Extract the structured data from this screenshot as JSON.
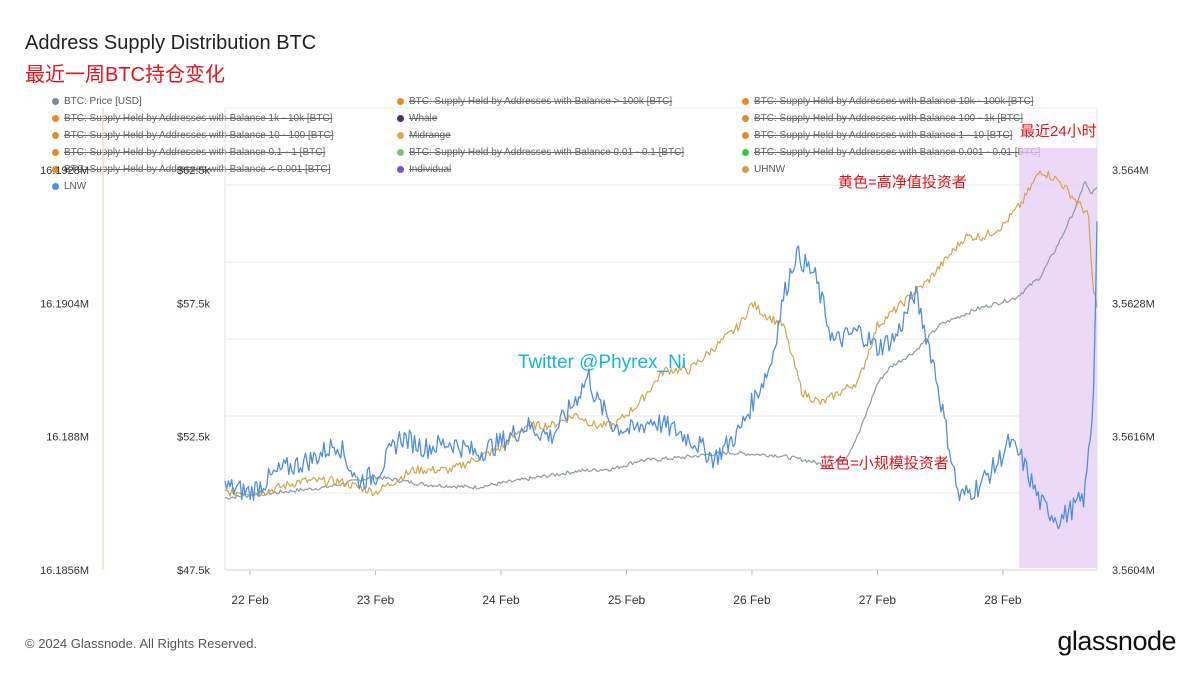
{
  "header": {
    "title": "Address Supply Distribution BTC",
    "subtitle": "最近一周BTC持仓变化"
  },
  "legend": [
    {
      "label": "BTC: Price [USD]",
      "color": "#7a8a93",
      "struck": false
    },
    {
      "label": "BTC: Supply Held by Addresses with Balance > 100k [BTC]",
      "color": "#e8892c",
      "struck": true
    },
    {
      "label": "BTC: Supply Held by Addresses with Balance 10k - 100k [BTC]",
      "color": "#e8892c",
      "struck": true
    },
    {
      "label": "BTC: Supply Held by Addresses with Balance 1k - 10k [BTC]",
      "color": "#e8892c",
      "struck": true
    },
    {
      "label": "Whale",
      "color": "#4b2e74",
      "struck": true
    },
    {
      "label": "BTC: Supply Held by Addresses with Balance 100 - 1k [BTC]",
      "color": "#e8892c",
      "struck": true
    },
    {
      "label": "BTC: Supply Held by Addresses with Balance 10 - 100 [BTC]",
      "color": "#e8892c",
      "struck": true
    },
    {
      "label": "Midrange",
      "color": "#e6a35a",
      "struck": true
    },
    {
      "label": "BTC: Supply Held by Addresses with Balance 1 - 10 [BTC]",
      "color": "#e8892c",
      "struck": true
    },
    {
      "label": "BTC: Supply Held by Addresses with Balance 0.1 - 1 [BTC]",
      "color": "#e8892c",
      "struck": true
    },
    {
      "label": "BTC: Supply Held by Addresses with Balance 0.01 - 0.1 [BTC]",
      "color": "#7cc17a",
      "struck": true
    },
    {
      "label": "BTC: Supply Held by Addresses with Balance 0.001 - 0.01 [BTC]",
      "color": "#2ecc40",
      "struck": true
    },
    {
      "label": "BTC: Supply Held by Addresses with Balance < 0.001 [BTC]",
      "color": "#e8892c",
      "struck": true
    },
    {
      "label": "Individual",
      "color": "#7b4fd6",
      "struck": true
    },
    {
      "label": "UHNW",
      "color": "#c9a045",
      "struck": false
    },
    {
      "label": "LNW",
      "color": "#4f8fdc",
      "struck": false
    }
  ],
  "annotations": {
    "watermark": "Twitter @Phyrex_Ni",
    "last24h": "最近24小时",
    "yellow_note": "黄色=高净值投资者",
    "blue_note": "蓝色=小规模投资者"
  },
  "footer": {
    "copyright": "© 2024 Glassnode. All Rights Reserved.",
    "brand": "glassnode"
  },
  "colors": {
    "price": "#8d9aa1",
    "uhnw": "#d2a54a",
    "lnw": "#4f8fdc",
    "highlight": "#e6ccf5",
    "annotation": "#e4131b",
    "watermark": "#16b4d9"
  },
  "chart_data": {
    "type": "line",
    "title": "Address Supply Distribution BTC",
    "x_ticks": [
      "22 Feb",
      "23 Feb",
      "24 Feb",
      "25 Feb",
      "26 Feb",
      "27 Feb",
      "28 Feb"
    ],
    "x_range_days": [
      21.8,
      28.75
    ],
    "axes": {
      "left_outer": {
        "ticks": [
          "16.1928M",
          "16.1904M",
          "16.188M",
          "16.1856M"
        ],
        "range": [
          16.1856,
          16.1928
        ]
      },
      "left_price": {
        "ticks": [
          "$62.5k",
          "$57.5k",
          "$52.5k",
          "$47.5k"
        ],
        "range": [
          47.5,
          62.5
        ]
      },
      "right": {
        "ticks": [
          "3.564M",
          "3.5628M",
          "3.5616M",
          "3.5604M"
        ],
        "range": [
          3.5604,
          3.564
        ]
      }
    },
    "highlight_range_days": [
      28.13,
      28.75
    ],
    "series": [
      {
        "name": "BTC: Price [USD]",
        "axis": "left_price",
        "unit": "k USD",
        "x": [
          21.8,
          22.2,
          22.6,
          23.0,
          23.4,
          23.8,
          24.2,
          24.6,
          24.9,
          25.1,
          25.4,
          25.8,
          26.2,
          26.45,
          26.6,
          26.75,
          26.85,
          27.0,
          27.1,
          27.3,
          27.5,
          27.8,
          28.1,
          28.3,
          28.45,
          28.6,
          28.65,
          28.7,
          28.75
        ],
        "y": [
          50.2,
          50.4,
          50.6,
          51.0,
          50.7,
          50.6,
          50.9,
          51.2,
          51.3,
          51.6,
          51.7,
          51.9,
          51.8,
          51.6,
          51.4,
          51.7,
          52.6,
          54.5,
          55.1,
          55.7,
          56.7,
          57.3,
          57.7,
          58.5,
          59.8,
          61.3,
          62.1,
          61.6,
          61.8
        ]
      },
      {
        "name": "UHNW",
        "axis": "right",
        "unit": "BTC",
        "x": [
          21.8,
          22.1,
          22.4,
          22.7,
          23.0,
          23.3,
          23.6,
          23.8,
          24.0,
          24.2,
          24.4,
          24.6,
          24.75,
          24.9,
          25.1,
          25.3,
          25.5,
          25.7,
          25.9,
          26.0,
          26.1,
          26.25,
          26.4,
          26.55,
          26.7,
          26.85,
          27.0,
          27.2,
          27.4,
          27.55,
          27.7,
          27.85,
          28.0,
          28.15,
          28.3,
          28.45,
          28.6,
          28.68,
          28.72,
          28.75
        ],
        "y": [
          3.5611,
          3.5611,
          3.5612,
          3.5612,
          3.5611,
          3.5613,
          3.5613,
          3.5614,
          3.5615,
          3.5617,
          3.5617,
          3.5618,
          3.5617,
          3.5617,
          3.5619,
          3.5622,
          3.5622,
          3.5624,
          3.5626,
          3.5628,
          3.5627,
          3.5626,
          3.562,
          3.5619,
          3.562,
          3.5621,
          3.5626,
          3.5628,
          3.563,
          3.5632,
          3.5634,
          3.5634,
          3.5635,
          3.5637,
          3.564,
          3.5639,
          3.5637,
          3.5636,
          3.5629,
          3.5628
        ]
      },
      {
        "name": "LNW",
        "axis": "left_outer",
        "unit": "M BTC",
        "x": [
          21.8,
          22.0,
          22.25,
          22.5,
          22.7,
          22.85,
          23.0,
          23.2,
          23.4,
          23.6,
          23.8,
          24.0,
          24.2,
          24.4,
          24.55,
          24.7,
          24.75,
          24.9,
          25.05,
          25.2,
          25.4,
          25.55,
          25.7,
          25.9,
          26.0,
          26.15,
          26.25,
          26.35,
          26.5,
          26.65,
          26.75,
          26.85,
          27.0,
          27.15,
          27.3,
          27.45,
          27.55,
          27.65,
          27.8,
          27.95,
          28.05,
          28.15,
          28.3,
          28.45,
          28.55,
          28.65,
          28.72,
          28.75
        ],
        "y": [
          16.1871,
          16.187,
          16.1874,
          16.1876,
          16.1879,
          16.1872,
          16.1873,
          16.188,
          16.1878,
          16.1879,
          16.1877,
          16.1879,
          16.1882,
          16.188,
          16.1885,
          16.1891,
          16.1887,
          16.1882,
          16.1881,
          16.1883,
          16.1881,
          16.1879,
          16.1876,
          16.1881,
          16.1886,
          16.1893,
          16.1905,
          16.1913,
          16.1909,
          16.1897,
          16.1898,
          16.1899,
          16.1896,
          16.1898,
          16.1906,
          16.1893,
          16.1881,
          16.1869,
          16.1871,
          16.1875,
          16.1879,
          16.1876,
          16.1868,
          16.1865,
          16.1867,
          16.1869,
          16.1886,
          16.1918
        ]
      }
    ]
  }
}
